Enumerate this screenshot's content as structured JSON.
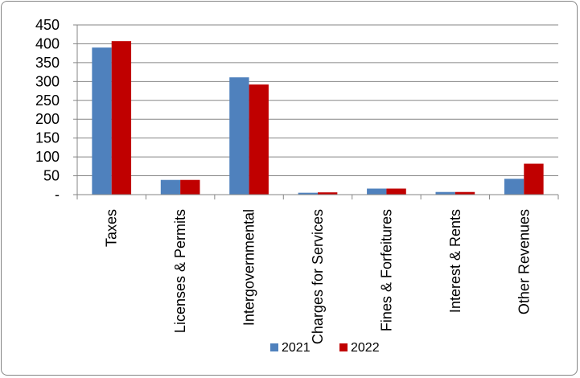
{
  "chart_data": {
    "type": "bar",
    "categories": [
      "Taxes",
      "Licenses & Permits",
      "Intergovernmental",
      "Charges for Services",
      "Fines & Forfeitures",
      "Interest & Rents",
      "Other Revenues"
    ],
    "series": [
      {
        "name": "2021",
        "values": [
          390,
          39,
          311,
          5,
          16,
          7,
          42
        ],
        "color": "#4f81bd"
      },
      {
        "name": "2022",
        "values": [
          407,
          39,
          292,
          6,
          16,
          7,
          82
        ],
        "color": "#c00000"
      }
    ],
    "ylim": [
      0,
      450
    ],
    "y_ticks": [
      0,
      50,
      100,
      150,
      200,
      250,
      300,
      350,
      400,
      450
    ],
    "y_tick_labels": [
      "-",
      "50",
      "100",
      "150",
      "200",
      "250",
      "300",
      "350",
      "400",
      "450"
    ],
    "grid": true,
    "legend_position": "bottom",
    "title": "",
    "xlabel": "",
    "ylabel": ""
  }
}
